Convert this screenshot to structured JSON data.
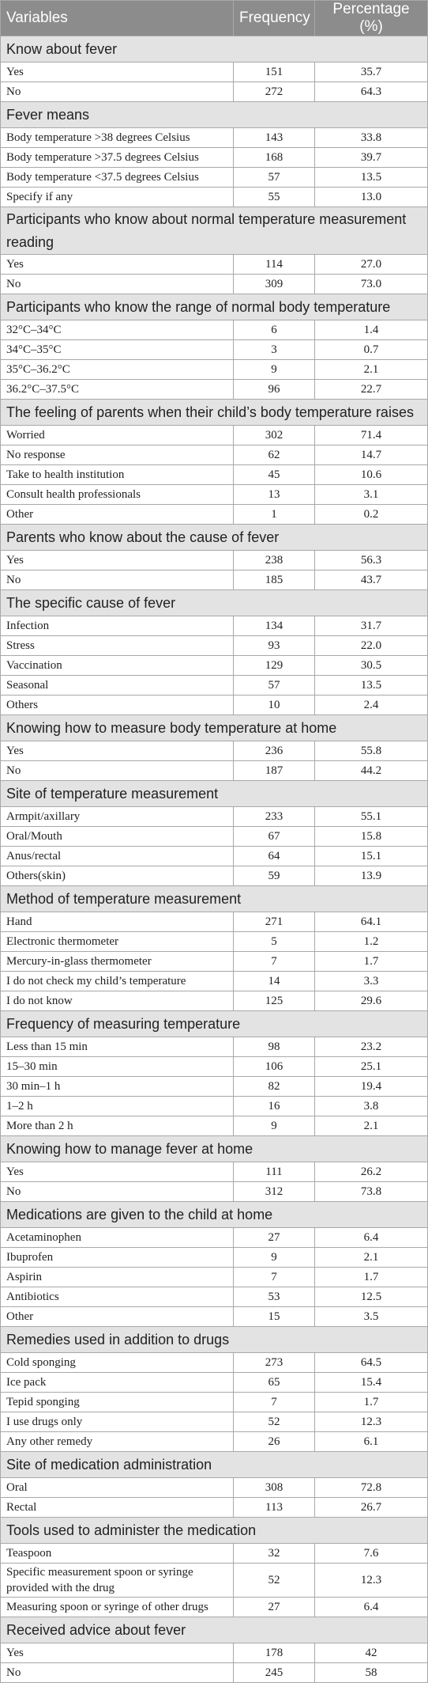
{
  "headers": [
    "Variables",
    "Frequency",
    "Percentage (%)"
  ],
  "sections": [
    {
      "title": "Know about fever",
      "rows": [
        [
          "Yes",
          "151",
          "35.7"
        ],
        [
          "No",
          "272",
          "64.3"
        ]
      ]
    },
    {
      "title": "Fever means",
      "rows": [
        [
          "Body temperature >38 degrees Celsius",
          "143",
          "33.8"
        ],
        [
          "Body temperature >37.5 degrees Celsius",
          "168",
          "39.7"
        ],
        [
          "Body temperature <37.5 degrees Celsius",
          "57",
          "13.5"
        ],
        [
          "Specify if any",
          "55",
          "13.0"
        ]
      ]
    },
    {
      "title": "Participants who know about normal temperature measurement reading",
      "rows": [
        [
          "Yes",
          "114",
          "27.0"
        ],
        [
          "No",
          "309",
          "73.0"
        ]
      ]
    },
    {
      "title": "Participants who know the range of normal body temperature",
      "rows": [
        [
          "32°C–34°C",
          "6",
          "1.4"
        ],
        [
          "34°C–35°C",
          "3",
          "0.7"
        ],
        [
          "35°C–36.2°C",
          "9",
          "2.1"
        ],
        [
          "36.2°C–37.5°C",
          "96",
          "22.7"
        ]
      ]
    },
    {
      "title": "The feeling of parents when their child’s body temperature raises",
      "rows": [
        [
          "Worried",
          "302",
          "71.4"
        ],
        [
          "No response",
          "62",
          "14.7"
        ],
        [
          "Take to health institution",
          "45",
          "10.6"
        ],
        [
          "Consult health professionals",
          "13",
          "3.1"
        ],
        [
          "Other",
          "1",
          "0.2"
        ]
      ]
    },
    {
      "title": "Parents who know about the cause of fever",
      "rows": [
        [
          "Yes",
          "238",
          "56.3"
        ],
        [
          "No",
          "185",
          "43.7"
        ]
      ]
    },
    {
      "title": "The specific cause of fever",
      "rows": [
        [
          "Infection",
          "134",
          "31.7"
        ],
        [
          "Stress",
          "93",
          "22.0"
        ],
        [
          "Vaccination",
          "129",
          "30.5"
        ],
        [
          "Seasonal",
          "57",
          "13.5"
        ],
        [
          "Others",
          "10",
          "2.4"
        ]
      ]
    },
    {
      "title": "Knowing how to measure body temperature at home",
      "rows": [
        [
          "Yes",
          "236",
          "55.8"
        ],
        [
          "No",
          "187",
          "44.2"
        ]
      ]
    },
    {
      "title": "Site of temperature measurement",
      "rows": [
        [
          "Armpit/axillary",
          "233",
          "55.1"
        ],
        [
          "Oral/Mouth",
          "67",
          "15.8"
        ],
        [
          "Anus/rectal",
          "64",
          "15.1"
        ],
        [
          "Others(skin)",
          "59",
          "13.9"
        ]
      ]
    },
    {
      "title": "Method of temperature measurement",
      "rows": [
        [
          "Hand",
          "271",
          "64.1"
        ],
        [
          "Electronic thermometer",
          "5",
          "1.2"
        ],
        [
          "Mercury-in-glass thermometer",
          "7",
          "1.7"
        ],
        [
          "I do not check my child’s temperature",
          "14",
          "3.3"
        ],
        [
          "I do not know",
          "125",
          "29.6"
        ]
      ]
    },
    {
      "title": "Frequency of measuring temperature",
      "rows": [
        [
          "Less than 15 min",
          "98",
          "23.2"
        ],
        [
          "15–30 min",
          "106",
          "25.1"
        ],
        [
          "30 min–1 h",
          "82",
          "19.4"
        ],
        [
          "1–2 h",
          "16",
          "3.8"
        ],
        [
          "More than 2 h",
          "9",
          "2.1"
        ]
      ]
    },
    {
      "title": "Knowing how to manage fever at home",
      "rows": [
        [
          "Yes",
          "111",
          "26.2"
        ],
        [
          "No",
          "312",
          "73.8"
        ]
      ]
    },
    {
      "title": "Medications are given to the child at home",
      "rows": [
        [
          "Acetaminophen",
          "27",
          "6.4"
        ],
        [
          "Ibuprofen",
          "9",
          "2.1"
        ],
        [
          "Aspirin",
          "7",
          "1.7"
        ],
        [
          "Antibiotics",
          "53",
          "12.5"
        ],
        [
          "Other",
          "15",
          "3.5"
        ]
      ]
    },
    {
      "title": "Remedies used in addition to drugs",
      "rows": [
        [
          "Cold sponging",
          "273",
          "64.5"
        ],
        [
          "Ice pack",
          "65",
          "15.4"
        ],
        [
          "Tepid sponging",
          "7",
          "1.7"
        ],
        [
          "I use drugs only",
          "52",
          "12.3"
        ],
        [
          "Any other remedy",
          "26",
          "6.1"
        ]
      ]
    },
    {
      "title": "Site of medication administration",
      "rows": [
        [
          "Oral",
          "308",
          "72.8"
        ],
        [
          "Rectal",
          "113",
          "26.7"
        ]
      ]
    },
    {
      "title": "Tools used to administer the medication",
      "rows": [
        [
          "Teaspoon",
          "32",
          "7.6"
        ],
        [
          "Specific measurement spoon or syringe provided with the drug",
          "52",
          "12.3"
        ],
        [
          "Measuring spoon or syringe of other drugs",
          "27",
          "6.4"
        ]
      ]
    },
    {
      "title": "Received advice about fever",
      "rows": [
        [
          "Yes",
          "178",
          "42"
        ],
        [
          "No",
          "245",
          "58"
        ]
      ]
    }
  ]
}
